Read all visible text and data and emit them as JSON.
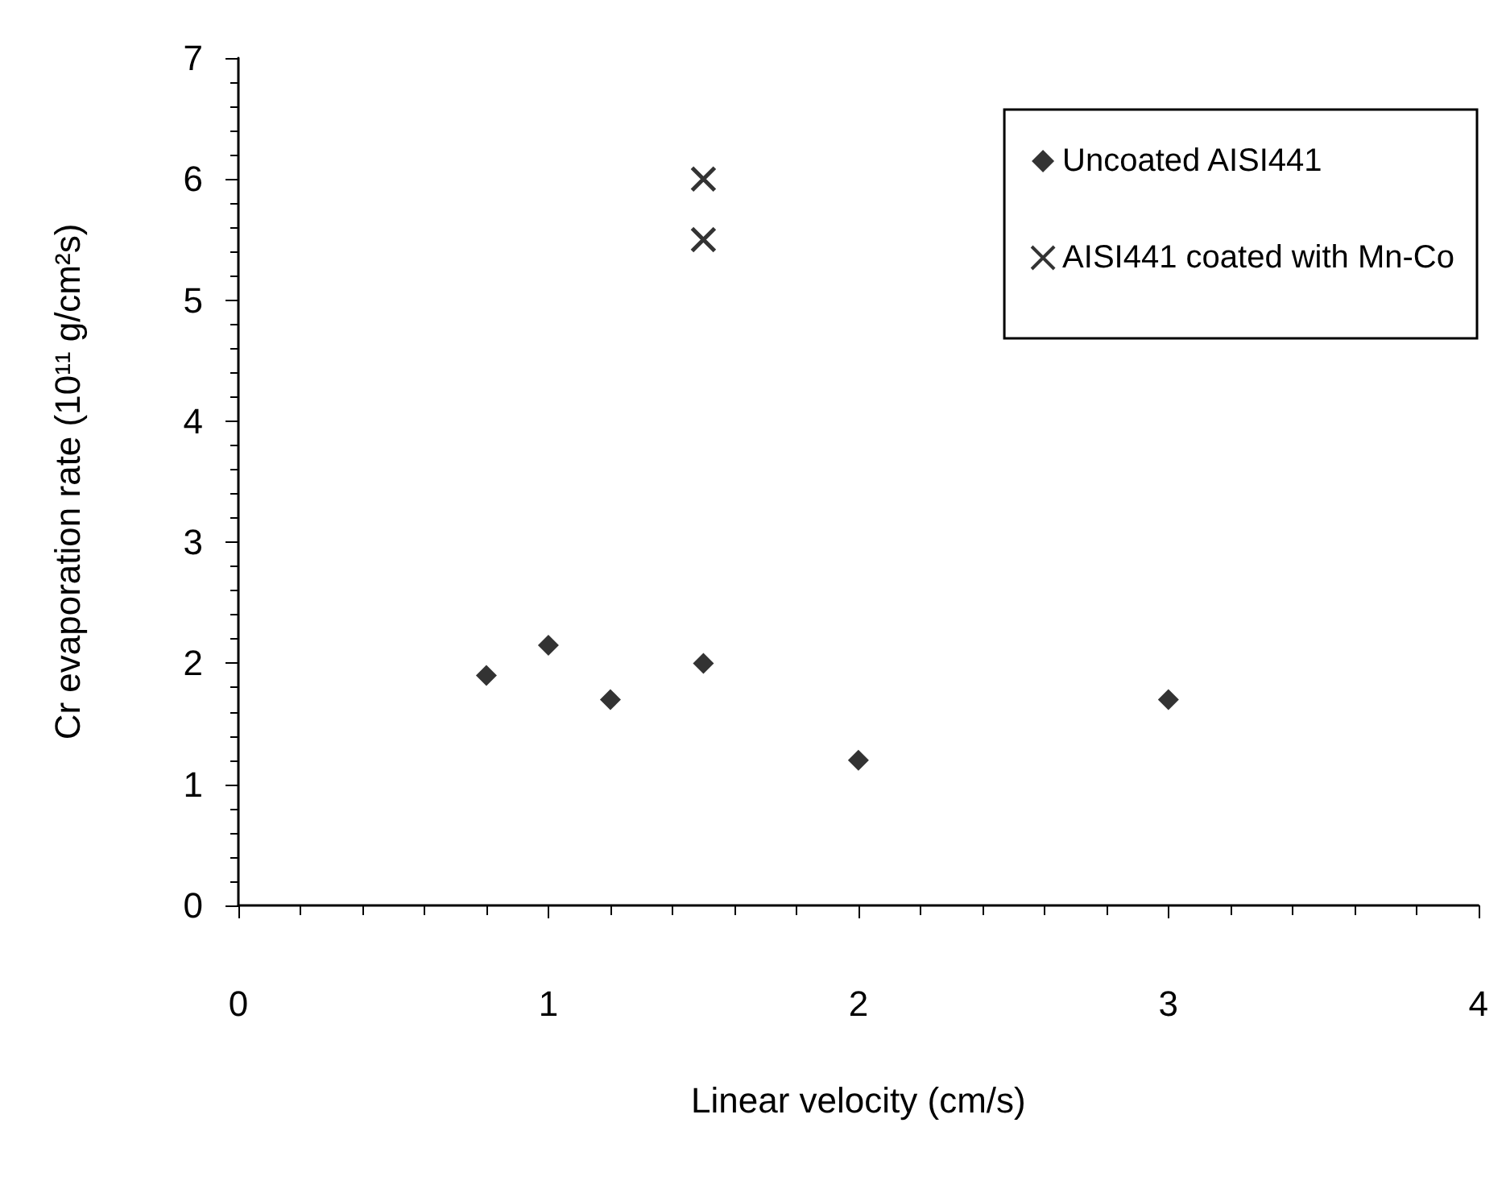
{
  "chart_data": {
    "type": "scatter",
    "xlabel": "Linear velocity (cm/s)",
    "ylabel": "Cr evaporation rate (10¹¹ g/cm²s)",
    "xlim": [
      0,
      4
    ],
    "xticks": [
      0,
      1,
      2,
      3,
      4
    ],
    "ylim": [
      0,
      7
    ],
    "yticks": [
      0,
      1,
      2,
      3,
      4,
      5,
      6,
      7
    ],
    "grid": false,
    "legend": "top right",
    "series": [
      {
        "name": "Uncoated AISI441",
        "color": "#000000",
        "marker": "diamond",
        "x": [
          0.8,
          1.0,
          1.2,
          1.5,
          2.0,
          3.0
        ],
        "values": [
          1.9,
          2.15,
          1.7,
          2.0,
          1.2,
          1.7
        ]
      },
      {
        "name": "AISI441 coated with Mn-Co",
        "color": "#000000",
        "marker": "cross",
        "x": [
          1.5,
          1.5
        ],
        "values": [
          5.5,
          6.0
        ]
      }
    ]
  }
}
